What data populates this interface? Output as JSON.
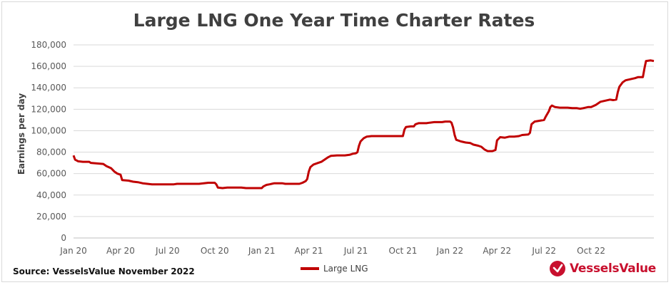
{
  "chart_data": {
    "type": "line",
    "title": "Large LNG One Year Time Charter Rates",
    "ylabel": "Earnings per day",
    "xlabel": "",
    "ylim": [
      0,
      180000
    ],
    "yticks": [
      "0",
      "20,000",
      "40,000",
      "60,000",
      "80,000",
      "100,000",
      "120,000",
      "140,000",
      "160,000",
      "180,000"
    ],
    "ytick_values": [
      0,
      20000,
      40000,
      60000,
      80000,
      100000,
      120000,
      140000,
      160000,
      180000
    ],
    "xticks": [
      "Jan 20",
      "Apr 20",
      "Jul 20",
      "Oct 20",
      "Jan 21",
      "Apr 21",
      "Jul 21",
      "Oct 21",
      "Jan 22",
      "Apr 22",
      "Jul 22",
      "Oct 22"
    ],
    "xtick_values": [
      0,
      3,
      6,
      9,
      12,
      15,
      18,
      21,
      24,
      27,
      30,
      33
    ],
    "xlim": [
      0,
      35.3
    ],
    "grid": "horizontal",
    "legend": "bottom-center",
    "series": [
      {
        "name": "Large LNG",
        "color": "#c00000",
        "points": [
          [
            0,
            77000
          ],
          [
            0.1,
            73000
          ],
          [
            0.3,
            71500
          ],
          [
            0.6,
            71000
          ],
          [
            1.0,
            71000
          ],
          [
            1.1,
            70000
          ],
          [
            1.5,
            69500
          ],
          [
            1.9,
            69000
          ],
          [
            2.1,
            67000
          ],
          [
            2.4,
            65000
          ],
          [
            2.6,
            62000
          ],
          [
            2.8,
            60000
          ],
          [
            3.0,
            59000
          ],
          [
            3.1,
            54000
          ],
          [
            3.5,
            53500
          ],
          [
            3.8,
            52500
          ],
          [
            4.1,
            52000
          ],
          [
            4.4,
            51000
          ],
          [
            4.7,
            50500
          ],
          [
            5.0,
            50000
          ],
          [
            5.5,
            50000
          ],
          [
            6.0,
            50000
          ],
          [
            6.4,
            50000
          ],
          [
            6.6,
            50500
          ],
          [
            7.0,
            50500
          ],
          [
            7.5,
            50500
          ],
          [
            8.0,
            50500
          ],
          [
            8.3,
            51000
          ],
          [
            8.6,
            51500
          ],
          [
            9.0,
            51500
          ],
          [
            9.1,
            50000
          ],
          [
            9.2,
            47000
          ],
          [
            9.5,
            46500
          ],
          [
            9.8,
            47000
          ],
          [
            10.4,
            47000
          ],
          [
            10.7,
            47000
          ],
          [
            11.0,
            46500
          ],
          [
            11.5,
            46500
          ],
          [
            12.0,
            46500
          ],
          [
            12.1,
            48000
          ],
          [
            12.3,
            49500
          ],
          [
            12.5,
            50000
          ],
          [
            12.8,
            51000
          ],
          [
            13.3,
            51000
          ],
          [
            13.5,
            50500
          ],
          [
            14.0,
            50500
          ],
          [
            14.4,
            50500
          ],
          [
            14.6,
            51500
          ],
          [
            14.8,
            53000
          ],
          [
            14.9,
            55000
          ],
          [
            15.0,
            62000
          ],
          [
            15.1,
            66000
          ],
          [
            15.3,
            68500
          ],
          [
            15.6,
            70000
          ],
          [
            15.8,
            71000
          ],
          [
            16.0,
            73000
          ],
          [
            16.2,
            75000
          ],
          [
            16.4,
            76500
          ],
          [
            16.8,
            77000
          ],
          [
            17.3,
            77000
          ],
          [
            17.6,
            77500
          ],
          [
            17.8,
            78500
          ],
          [
            18.0,
            79000
          ],
          [
            18.1,
            80000
          ],
          [
            18.2,
            86000
          ],
          [
            18.3,
            90000
          ],
          [
            18.5,
            93000
          ],
          [
            18.7,
            94500
          ],
          [
            19.0,
            95000
          ],
          [
            19.5,
            95000
          ],
          [
            20.0,
            95000
          ],
          [
            20.5,
            95000
          ],
          [
            21.0,
            95000
          ],
          [
            21.1,
            101000
          ],
          [
            21.2,
            103500
          ],
          [
            21.5,
            104000
          ],
          [
            21.7,
            104000
          ],
          [
            21.8,
            106000
          ],
          [
            22.0,
            107000
          ],
          [
            22.5,
            107000
          ],
          [
            22.7,
            107500
          ],
          [
            23.0,
            108000
          ],
          [
            23.5,
            108000
          ],
          [
            23.7,
            108500
          ],
          [
            24.0,
            108500
          ],
          [
            24.1,
            107500
          ],
          [
            24.2,
            103000
          ],
          [
            24.3,
            96000
          ],
          [
            24.4,
            91500
          ],
          [
            24.7,
            90000
          ],
          [
            25.0,
            89000
          ],
          [
            25.3,
            88500
          ],
          [
            25.5,
            87000
          ],
          [
            25.8,
            86000
          ],
          [
            26.0,
            85000
          ],
          [
            26.2,
            82500
          ],
          [
            26.4,
            81000
          ],
          [
            26.7,
            81000
          ],
          [
            26.9,
            82000
          ],
          [
            27.0,
            91000
          ],
          [
            27.2,
            94000
          ],
          [
            27.5,
            93500
          ],
          [
            27.8,
            94500
          ],
          [
            28.1,
            94500
          ],
          [
            28.4,
            95000
          ],
          [
            28.6,
            96000
          ],
          [
            29.0,
            96500
          ],
          [
            29.1,
            98000
          ],
          [
            29.2,
            106000
          ],
          [
            29.4,
            108500
          ],
          [
            29.8,
            109500
          ],
          [
            30.0,
            110000
          ],
          [
            30.1,
            113000
          ],
          [
            30.3,
            118000
          ],
          [
            30.4,
            122000
          ],
          [
            30.5,
            123500
          ],
          [
            30.7,
            122000
          ],
          [
            31.0,
            121500
          ],
          [
            31.5,
            121500
          ],
          [
            31.8,
            121000
          ],
          [
            32.1,
            121000
          ],
          [
            32.3,
            120500
          ],
          [
            32.5,
            121000
          ],
          [
            32.8,
            122000
          ],
          [
            33.0,
            122000
          ],
          [
            33.3,
            124000
          ],
          [
            33.6,
            127000
          ],
          [
            33.9,
            128000
          ],
          [
            34.2,
            129000
          ],
          [
            34.4,
            128500
          ],
          [
            34.6,
            129000
          ],
          [
            34.7,
            136000
          ],
          [
            34.8,
            141000
          ],
          [
            35.0,
            145000
          ],
          [
            35.2,
            147000
          ],
          [
            35.5,
            148000
          ],
          [
            35.8,
            149000
          ],
          [
            36.0,
            150000
          ],
          [
            36.3,
            150000
          ],
          [
            36.4,
            158000
          ],
          [
            36.5,
            165000
          ],
          [
            36.8,
            165500
          ],
          [
            37.0,
            165000
          ]
        ]
      }
    ]
  },
  "source": "Source: VesselsValue November 2022",
  "logo": {
    "text": "VesselsValue",
    "color": "#c8102e"
  }
}
